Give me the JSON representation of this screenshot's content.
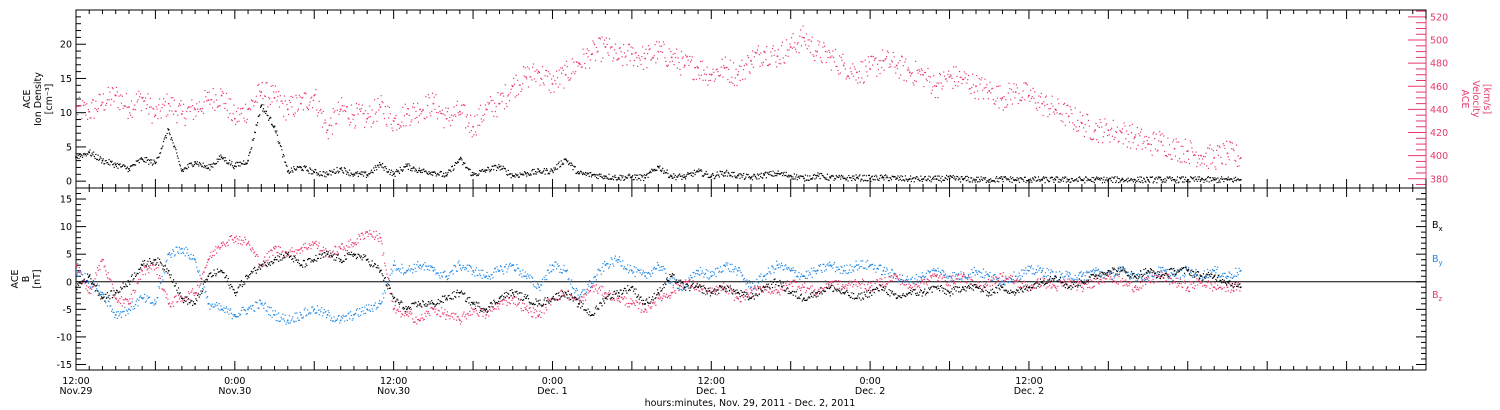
{
  "chart_data": [
    {
      "type": "scatter",
      "panel": "top",
      "ylabel_left": [
        "ACE",
        "Ion Density",
        "[cm⁻³]"
      ],
      "ylabel_right": [
        "ACE",
        "Velocity",
        "[km/s]"
      ],
      "ylim_left": [
        -1,
        25
      ],
      "ylim_right": [
        372,
        526
      ],
      "yticks_left": [
        0,
        5,
        10,
        15,
        20
      ],
      "yticks_right": [
        380,
        400,
        420,
        440,
        460,
        480,
        500,
        520
      ],
      "colors": {
        "density": "#000000",
        "velocity": "#e8386a"
      },
      "series": [
        {
          "name": "",
          "axis": "left",
          "color": "#000000",
          "x": [
            0,
            2,
            4,
            6,
            8,
            10,
            12,
            14,
            16,
            18,
            20,
            22,
            24,
            26,
            28,
            30,
            32,
            34,
            36,
            38,
            40,
            42,
            44,
            46,
            48,
            50,
            52,
            54,
            56,
            58,
            60,
            62,
            64,
            66,
            68,
            70,
            72,
            74,
            76,
            78,
            80,
            82,
            84,
            86,
            88,
            90,
            92,
            94,
            96,
            98,
            100,
            102,
            104,
            106,
            108,
            110,
            112,
            114,
            116,
            118,
            120,
            122,
            124,
            126,
            128,
            130,
            132,
            134,
            136,
            138,
            140,
            142,
            144,
            146,
            148,
            150,
            152,
            154,
            156,
            158,
            160,
            162,
            164,
            166,
            168,
            170,
            172,
            174,
            176
          ],
          "values": [
            3.5,
            4.2,
            3.0,
            2.4,
            1.8,
            3.2,
            2.6,
            7.5,
            1.5,
            2.8,
            1.9,
            3.5,
            2.2,
            3.0,
            11.0,
            8.0,
            1.4,
            2.0,
            1.3,
            1.0,
            1.8,
            1.0,
            0.9,
            2.4,
            1.0,
            2.2,
            1.5,
            1.3,
            0.8,
            3.2,
            0.9,
            1.6,
            2.1,
            0.8,
            1.1,
            1.4,
            1.5,
            3.2,
            1.1,
            0.9,
            0.7,
            0.5,
            0.6,
            0.5,
            2.1,
            0.7,
            0.6,
            1.4,
            0.7,
            1.2,
            0.8,
            0.5,
            0.9,
            1.1,
            0.8,
            0.4,
            0.8,
            0.5,
            0.4,
            0.5,
            0.4,
            0.5,
            0.4,
            0.3,
            0.3,
            0.3,
            0.4,
            0.3,
            0.2,
            0.2,
            0.3,
            0.2,
            0.2,
            0.2,
            0.2,
            0.2,
            0.2,
            0.2,
            0.2,
            0.2,
            0.2,
            0.2,
            0.2,
            0.2,
            0.2,
            0.2,
            0.2,
            0.2,
            0.2
          ]
        },
        {
          "name": "",
          "axis": "right",
          "color": "#e8386a",
          "x": [
            0,
            2,
            4,
            6,
            8,
            10,
            12,
            14,
            16,
            18,
            20,
            22,
            24,
            26,
            28,
            30,
            32,
            34,
            36,
            38,
            40,
            42,
            44,
            46,
            48,
            50,
            52,
            54,
            56,
            58,
            60,
            62,
            64,
            66,
            68,
            70,
            72,
            74,
            76,
            78,
            80,
            82,
            84,
            86,
            88,
            90,
            92,
            94,
            96,
            98,
            100,
            102,
            104,
            106,
            108,
            110,
            112,
            114,
            116,
            118,
            120,
            122,
            124,
            126,
            128,
            130,
            132,
            134,
            136,
            138,
            140,
            142,
            144,
            146,
            148,
            150,
            152,
            154,
            156,
            158,
            160,
            162,
            164,
            166,
            168,
            170,
            172,
            174,
            176
          ],
          "values": [
            440,
            438,
            446,
            452,
            442,
            450,
            435,
            445,
            436,
            440,
            448,
            452,
            432,
            440,
            455,
            450,
            440,
            445,
            452,
            422,
            440,
            435,
            432,
            442,
            430,
            436,
            440,
            445,
            432,
            438,
            425,
            440,
            445,
            460,
            468,
            472,
            462,
            470,
            480,
            488,
            494,
            484,
            488,
            484,
            490,
            485,
            478,
            476,
            470,
            476,
            470,
            482,
            490,
            486,
            494,
            502,
            490,
            485,
            478,
            472,
            475,
            482,
            478,
            472,
            470,
            460,
            468,
            466,
            460,
            456,
            450,
            455,
            452,
            445,
            440,
            434,
            428,
            422,
            422,
            420,
            416,
            410,
            412,
            406,
            404,
            400,
            398,
            402,
            398
          ]
        }
      ]
    },
    {
      "type": "scatter",
      "panel": "bottom",
      "ylabel_left": [
        "ACE",
        "B",
        "[nT]"
      ],
      "ylim": [
        -16,
        17
      ],
      "yticks": [
        -15,
        -10,
        -5,
        0,
        5,
        10,
        15
      ],
      "zero_line": true,
      "legend_labels": [
        "B",
        "B",
        "B"
      ],
      "legend_subscripts": [
        "x",
        "y",
        "z"
      ],
      "legend_placement": "right",
      "colors": {
        "bx": "#000000",
        "by": "#1e88e5",
        "bz": "#e8386a"
      },
      "series": [
        {
          "name": "Bx",
          "color": "#000000",
          "x": [
            0,
            2,
            4,
            6,
            8,
            10,
            12,
            14,
            16,
            18,
            20,
            22,
            24,
            26,
            28,
            30,
            32,
            34,
            36,
            38,
            40,
            42,
            44,
            46,
            48,
            50,
            52,
            54,
            56,
            58,
            60,
            62,
            64,
            66,
            68,
            70,
            72,
            74,
            76,
            78,
            80,
            82,
            84,
            86,
            88,
            90,
            92,
            94,
            96,
            98,
            100,
            102,
            104,
            106,
            108,
            110,
            112,
            114,
            116,
            118,
            120,
            122,
            124,
            126,
            128,
            130,
            132,
            134,
            136,
            138,
            140,
            142,
            144,
            146,
            148,
            150,
            152,
            154,
            156,
            158,
            160,
            162,
            164,
            166,
            168,
            170,
            172,
            174,
            176
          ],
          "values": [
            -1,
            1,
            -3,
            -2,
            0,
            3,
            4,
            2,
            -3,
            -4,
            1,
            2,
            -2,
            1,
            3,
            4,
            5,
            3,
            4,
            5,
            4,
            5,
            4,
            2,
            -3,
            -5,
            -4,
            -4,
            -3,
            -2,
            -4,
            -5,
            -3,
            -2,
            -3,
            -4,
            -3,
            -2,
            -4,
            -6,
            -3,
            -2,
            -1,
            -4,
            -2,
            1,
            -1,
            -1,
            -2,
            -1,
            -2,
            -3,
            -1,
            0,
            -2,
            -3,
            -2,
            -1,
            -2,
            -3,
            -2,
            -1,
            -3,
            -2,
            -2,
            -1,
            -2,
            -1,
            -1,
            -2,
            -1,
            -2,
            -1,
            0,
            1,
            -1,
            0,
            1,
            2,
            2,
            1,
            2,
            1,
            2,
            2,
            1,
            1,
            0,
            -1
          ]
        },
        {
          "name": "By",
          "color": "#1e88e5",
          "x": [
            0,
            2,
            4,
            6,
            8,
            10,
            12,
            14,
            16,
            18,
            20,
            22,
            24,
            26,
            28,
            30,
            32,
            34,
            36,
            38,
            40,
            42,
            44,
            46,
            48,
            50,
            52,
            54,
            56,
            58,
            60,
            62,
            64,
            66,
            68,
            70,
            72,
            74,
            76,
            78,
            80,
            82,
            84,
            86,
            88,
            90,
            92,
            94,
            96,
            98,
            100,
            102,
            104,
            106,
            108,
            110,
            112,
            114,
            116,
            118,
            120,
            122,
            124,
            126,
            128,
            130,
            132,
            134,
            136,
            138,
            140,
            142,
            144,
            146,
            148,
            150,
            152,
            154,
            156,
            158,
            160,
            162,
            164,
            166,
            168,
            170,
            172,
            174,
            176
          ],
          "values": [
            2,
            0,
            -2,
            -6,
            -5,
            -3,
            -4,
            5,
            6,
            4,
            -4,
            -5,
            -6,
            -5,
            -4,
            -6,
            -7,
            -6,
            -5,
            -6,
            -7,
            -6,
            -5,
            -4,
            3,
            2,
            3,
            2,
            1,
            3,
            2,
            1,
            2,
            3,
            1,
            -1,
            3,
            2,
            -3,
            0,
            3,
            4,
            2,
            1,
            3,
            0,
            -1,
            2,
            1,
            3,
            2,
            -1,
            1,
            3,
            2,
            1,
            2,
            3,
            2,
            3,
            3,
            2,
            1,
            0,
            1,
            2,
            1,
            1,
            2,
            1,
            0,
            1,
            2,
            2,
            1,
            1,
            1,
            2,
            1,
            2,
            1,
            1,
            2,
            1,
            2,
            1,
            2,
            1,
            2
          ]
        },
        {
          "name": "Bz",
          "color": "#e8386a",
          "x": [
            0,
            2,
            4,
            6,
            8,
            10,
            12,
            14,
            16,
            18,
            20,
            22,
            24,
            26,
            28,
            30,
            32,
            34,
            36,
            38,
            40,
            42,
            44,
            46,
            48,
            50,
            52,
            54,
            56,
            58,
            60,
            62,
            64,
            66,
            68,
            70,
            72,
            74,
            76,
            78,
            80,
            82,
            84,
            86,
            88,
            90,
            92,
            94,
            96,
            98,
            100,
            102,
            104,
            106,
            108,
            110,
            112,
            114,
            116,
            118,
            120,
            122,
            124,
            126,
            128,
            130,
            132,
            134,
            136,
            138,
            140,
            142,
            144,
            146,
            148,
            150,
            152,
            154,
            156,
            158,
            160,
            162,
            164,
            166,
            168,
            170,
            172,
            174,
            176
          ],
          "values": [
            3,
            -2,
            4,
            -3,
            -4,
            2,
            3,
            -4,
            -3,
            -2,
            4,
            7,
            8,
            7,
            3,
            6,
            5,
            6,
            7,
            5,
            6,
            7,
            9,
            8,
            -5,
            -6,
            -7,
            -5,
            -6,
            -7,
            -5,
            -6,
            -4,
            -3,
            -5,
            -6,
            -3,
            -2,
            -4,
            -1,
            -2,
            -3,
            -4,
            -5,
            -3,
            -2,
            0,
            -1,
            -2,
            -1,
            -3,
            -2,
            -1,
            -2,
            0,
            -1,
            -2,
            0,
            -1,
            0,
            -1,
            0,
            1,
            -1,
            0,
            1,
            0,
            1,
            -1,
            0,
            1,
            0,
            -1,
            0,
            -1,
            0,
            -1,
            0,
            1,
            0,
            -1,
            0,
            1,
            0,
            -1,
            0,
            -1,
            -1,
            -1
          ]
        }
      ]
    }
  ],
  "x_axis": {
    "xlim": [
      0,
      204
    ],
    "ticks": [
      {
        "x": 0,
        "time": "12:00",
        "date": "Nov.29"
      },
      {
        "x": 24,
        "time": "0:00",
        "date": "Nov.30"
      },
      {
        "x": 48,
        "time": "12:00",
        "date": "Nov.30"
      },
      {
        "x": 72,
        "time": "0:00",
        "date": "Dec. 1"
      },
      {
        "x": 96,
        "time": "12:00",
        "date": "Dec. 1"
      },
      {
        "x": 120,
        "time": "0:00",
        "date": "Dec. 2"
      },
      {
        "x": 144,
        "time": "12:00",
        "date": "Dec. 2"
      }
    ],
    "xlabel": "hours:minutes, Nov. 29, 2011 - Dec. 2, 2011"
  }
}
